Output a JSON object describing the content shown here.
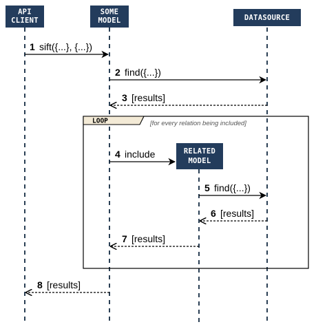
{
  "participants": [
    {
      "id": "api_client",
      "lines": [
        "API",
        "CLIENT"
      ]
    },
    {
      "id": "some_model",
      "lines": [
        "SOME",
        "MODEL"
      ]
    },
    {
      "id": "datasource",
      "lines": [
        "DATASOURCE"
      ]
    },
    {
      "id": "related_model",
      "lines": [
        "RELATED",
        "MODEL"
      ]
    }
  ],
  "loop": {
    "label": "LOOP",
    "guard": "[for every relation being included]"
  },
  "messages": [
    {
      "num": "1",
      "text": "sift({...}, {...})",
      "style": "solid"
    },
    {
      "num": "2",
      "text": "find({...})",
      "style": "solid"
    },
    {
      "num": "3",
      "text": "[results]",
      "style": "dashed"
    },
    {
      "num": "4",
      "text": "include",
      "style": "solid"
    },
    {
      "num": "5",
      "text": "find({...})",
      "style": "solid"
    },
    {
      "num": "6",
      "text": "[results]",
      "style": "dashed"
    },
    {
      "num": "7",
      "text": "[results]",
      "style": "dashed"
    },
    {
      "num": "8",
      "text": "[results]",
      "style": "dashed"
    }
  ],
  "colors": {
    "actor_fill": "#233c5c",
    "actor_text": "#ffffff",
    "loop_tab_fill": "#f3ead6"
  }
}
